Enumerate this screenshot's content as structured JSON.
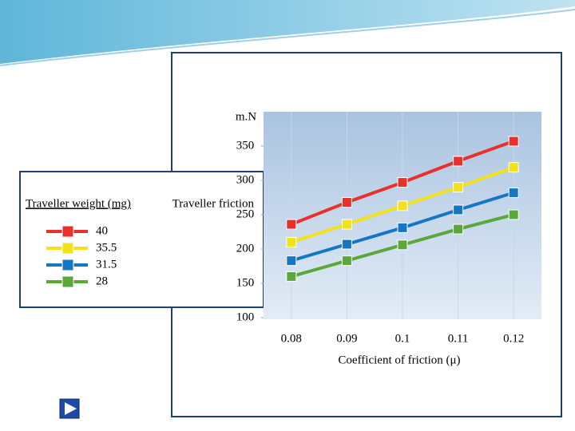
{
  "chart_data": {
    "type": "line",
    "unit_label": "m.N",
    "y_label": "Traveller friction",
    "x_label": "Coefficient of friction (μ)",
    "legend_title": "Traveller weight (mg)",
    "x": [
      0.08,
      0.09,
      0.1,
      0.11,
      0.12
    ],
    "xlim": [
      0.075,
      0.125
    ],
    "xticks": [
      0.08,
      0.09,
      0.1,
      0.11,
      0.12
    ],
    "ylim": [
      100,
      400
    ],
    "yticks": [
      100,
      150,
      200,
      250,
      300,
      350
    ],
    "series": [
      {
        "name": "40",
        "color": "#e8312a",
        "values": [
          236,
          268,
          297,
          328,
          357
        ]
      },
      {
        "name": "35.5",
        "color": "#f3e21a",
        "values": [
          210,
          236,
          263,
          290,
          319
        ]
      },
      {
        "name": "31.5",
        "color": "#1577c4",
        "values": [
          183,
          207,
          231,
          257,
          282
        ]
      },
      {
        "name": "28",
        "color": "#5aa83a",
        "values": [
          160,
          183,
          206,
          229,
          250
        ]
      }
    ]
  }
}
